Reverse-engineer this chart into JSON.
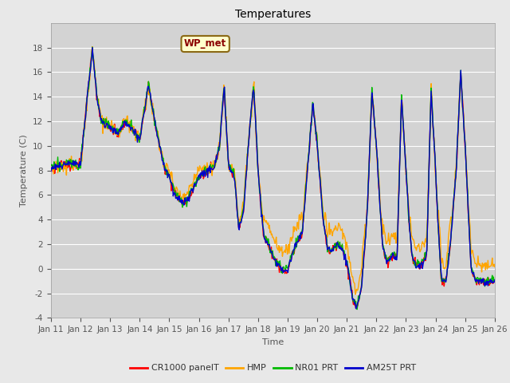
{
  "title": "Temperatures",
  "xlabel": "Time",
  "ylabel": "Temperature (C)",
  "ylim": [
    -4,
    20
  ],
  "yticks": [
    -4,
    -2,
    0,
    2,
    4,
    6,
    8,
    10,
    12,
    14,
    16,
    18
  ],
  "xtick_labels": [
    "Jan 11",
    "Jan 12",
    "Jan 13",
    "Jan 14",
    "Jan 15",
    "Jan 16",
    "Jan 17",
    "Jan 18",
    "Jan 19",
    "Jan 20",
    "Jan 21",
    "Jan 22",
    "Jan 23",
    "Jan 24",
    "Jan 25",
    "Jan 26"
  ],
  "annotation_text": "WP_met",
  "bg_color": "#e8e8e8",
  "plot_bg_color": "#d3d3d3",
  "legend_labels": [
    "CR1000 panelT",
    "HMP",
    "NR01 PRT",
    "AM25T PRT"
  ],
  "line_colors": [
    "#ff0000",
    "#ffa500",
    "#00bb00",
    "#0000cc"
  ],
  "line_width": 1.0,
  "title_fontsize": 10,
  "label_fontsize": 8,
  "tick_fontsize": 7.5
}
